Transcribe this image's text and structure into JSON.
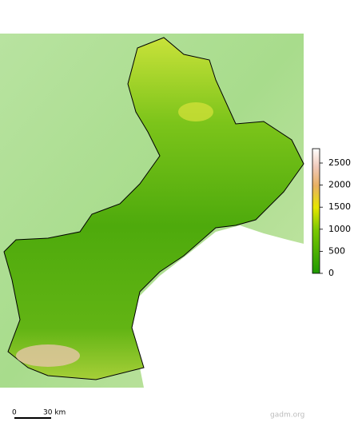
{
  "legend": {
    "range": [
      0,
      2826
    ],
    "ticks": [
      0,
      500,
      1000,
      1500,
      2000,
      2500
    ]
  },
  "scale_bar": {
    "start": "0",
    "end": "30 km"
  },
  "credit": "gadm.org"
}
